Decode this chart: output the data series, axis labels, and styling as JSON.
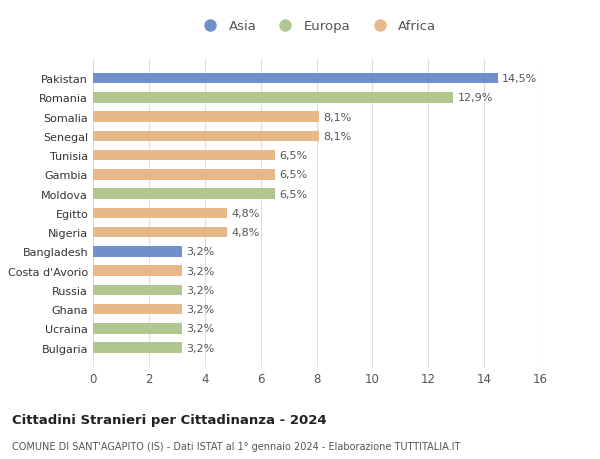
{
  "countries": [
    "Bulgaria",
    "Ucraina",
    "Ghana",
    "Russia",
    "Costa d'Avorio",
    "Bangladesh",
    "Nigeria",
    "Egitto",
    "Moldova",
    "Gambia",
    "Tunisia",
    "Senegal",
    "Somalia",
    "Romania",
    "Pakistan"
  ],
  "values": [
    3.2,
    3.2,
    3.2,
    3.2,
    3.2,
    3.2,
    4.8,
    4.8,
    6.5,
    6.5,
    6.5,
    8.1,
    8.1,
    12.9,
    14.5
  ],
  "continents": [
    "Europa",
    "Europa",
    "Africa",
    "Europa",
    "Africa",
    "Asia",
    "Africa",
    "Africa",
    "Europa",
    "Africa",
    "Africa",
    "Africa",
    "Africa",
    "Europa",
    "Asia"
  ],
  "labels": [
    "3,2%",
    "3,2%",
    "3,2%",
    "3,2%",
    "3,2%",
    "3,2%",
    "4,8%",
    "4,8%",
    "6,5%",
    "6,5%",
    "6,5%",
    "8,1%",
    "8,1%",
    "12,9%",
    "14,5%"
  ],
  "colors": {
    "Asia": "#7090cc",
    "Europa": "#b0c890",
    "Africa": "#e8b888"
  },
  "xlim": [
    0,
    16
  ],
  "xticks": [
    0,
    2,
    4,
    6,
    8,
    10,
    12,
    14,
    16
  ],
  "title": "Cittadini Stranieri per Cittadinanza - 2024",
  "subtitle": "COMUNE DI SANT'AGAPITO (IS) - Dati ISTAT al 1° gennaio 2024 - Elaborazione TUTTITALIA.IT",
  "background_color": "#ffffff",
  "grid_color": "#dddddd",
  "label_fontsize": 8,
  "bar_height": 0.55
}
